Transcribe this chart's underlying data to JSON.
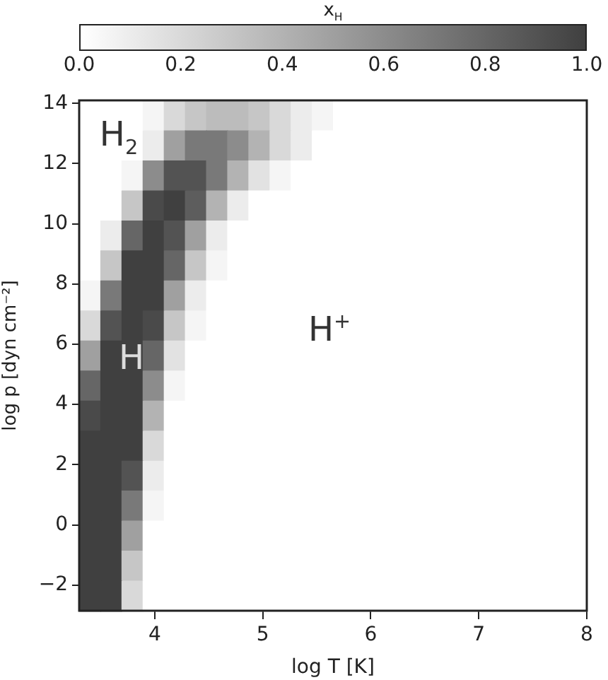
{
  "chart_data": {
    "type": "heatmap",
    "xlabel": "log T [K]",
    "ylabel": "log p [dyn cm⁻²]",
    "clabel": "x$_{H}$",
    "xlim": [
      3.3,
      8
    ],
    "xticks": [
      4,
      5,
      6,
      7,
      8
    ],
    "ylim": [
      -2.85,
      14.1
    ],
    "yticks": [
      -2,
      0,
      2,
      4,
      6,
      8,
      10,
      12,
      14
    ],
    "clim": [
      0,
      1
    ],
    "cticks": [
      {
        "value": 0,
        "label": "0.0"
      },
      {
        "value": 0.2,
        "label": "0.2"
      },
      {
        "value": 0.4,
        "label": "0.4"
      },
      {
        "value": 0.6,
        "label": "0.6"
      },
      {
        "value": 0.8,
        "label": "0.8"
      },
      {
        "value": 1,
        "label": "1.0"
      }
    ],
    "grid": false,
    "cells": [
      [
        0,
        0,
        0,
        0.05,
        0.2,
        0.3,
        0.35,
        0.35,
        0.3,
        0.2,
        0.1,
        0.05,
        0,
        0,
        0,
        0,
        0,
        0,
        0,
        0,
        0,
        0,
        0,
        0
      ],
      [
        0,
        0,
        0,
        0.1,
        0.5,
        0.7,
        0.7,
        0.6,
        0.4,
        0.2,
        0.1,
        0,
        0,
        0,
        0,
        0,
        0,
        0,
        0,
        0,
        0,
        0,
        0,
        0
      ],
      [
        0,
        0,
        0.05,
        0.6,
        0.9,
        0.9,
        0.7,
        0.4,
        0.15,
        0.05,
        0,
        0,
        0,
        0,
        0,
        0,
        0,
        0,
        0,
        0,
        0,
        0,
        0,
        0
      ],
      [
        0,
        0,
        0.3,
        0.95,
        1,
        0.85,
        0.4,
        0.1,
        0,
        0,
        0,
        0,
        0,
        0,
        0,
        0,
        0,
        0,
        0,
        0,
        0,
        0,
        0,
        0
      ],
      [
        0,
        0.1,
        0.8,
        1,
        0.9,
        0.5,
        0.1,
        0,
        0,
        0,
        0,
        0,
        0,
        0,
        0,
        0,
        0,
        0,
        0,
        0,
        0,
        0,
        0,
        0
      ],
      [
        0,
        0.3,
        1,
        1,
        0.8,
        0.3,
        0.05,
        0,
        0,
        0,
        0,
        0,
        0,
        0,
        0,
        0,
        0,
        0,
        0,
        0,
        0,
        0,
        0,
        0
      ],
      [
        0.05,
        0.7,
        1,
        1,
        0.5,
        0.1,
        0,
        0,
        0,
        0,
        0,
        0,
        0,
        0,
        0,
        0,
        0,
        0,
        0,
        0,
        0,
        0,
        0,
        0
      ],
      [
        0.2,
        0.9,
        1,
        0.95,
        0.3,
        0.05,
        0,
        0,
        0,
        0,
        0,
        0,
        0,
        0,
        0,
        0,
        0,
        0,
        0,
        0,
        0,
        0,
        0,
        0
      ],
      [
        0.5,
        1,
        1,
        0.8,
        0.15,
        0,
        0,
        0,
        0,
        0,
        0,
        0,
        0,
        0,
        0,
        0,
        0,
        0,
        0,
        0,
        0,
        0,
        0,
        0
      ],
      [
        0.8,
        1,
        1,
        0.6,
        0.05,
        0,
        0,
        0,
        0,
        0,
        0,
        0,
        0,
        0,
        0,
        0,
        0,
        0,
        0,
        0,
        0,
        0,
        0,
        0
      ],
      [
        0.95,
        1,
        1,
        0.4,
        0,
        0,
        0,
        0,
        0,
        0,
        0,
        0,
        0,
        0,
        0,
        0,
        0,
        0,
        0,
        0,
        0,
        0,
        0,
        0
      ],
      [
        1,
        1,
        1,
        0.2,
        0,
        0,
        0,
        0,
        0,
        0,
        0,
        0,
        0,
        0,
        0,
        0,
        0,
        0,
        0,
        0,
        0,
        0,
        0,
        0
      ],
      [
        1,
        1,
        0.9,
        0.1,
        0,
        0,
        0,
        0,
        0,
        0,
        0,
        0,
        0,
        0,
        0,
        0,
        0,
        0,
        0,
        0,
        0,
        0,
        0,
        0
      ],
      [
        1,
        1,
        0.7,
        0.05,
        0,
        0,
        0,
        0,
        0,
        0,
        0,
        0,
        0,
        0,
        0,
        0,
        0,
        0,
        0,
        0,
        0,
        0,
        0,
        0
      ],
      [
        1,
        1,
        0.5,
        0,
        0,
        0,
        0,
        0,
        0,
        0,
        0,
        0,
        0,
        0,
        0,
        0,
        0,
        0,
        0,
        0,
        0,
        0,
        0,
        0
      ],
      [
        1,
        1,
        0.3,
        0,
        0,
        0,
        0,
        0,
        0,
        0,
        0,
        0,
        0,
        0,
        0,
        0,
        0,
        0,
        0,
        0,
        0,
        0,
        0,
        0
      ],
      [
        1,
        1,
        0.2,
        0,
        0,
        0,
        0,
        0,
        0,
        0,
        0,
        0,
        0,
        0,
        0,
        0,
        0,
        0,
        0,
        0,
        0,
        0,
        0,
        0
      ]
    ],
    "annotations": [
      "H$_{2}$",
      "H",
      "H$^{+}$"
    ]
  }
}
